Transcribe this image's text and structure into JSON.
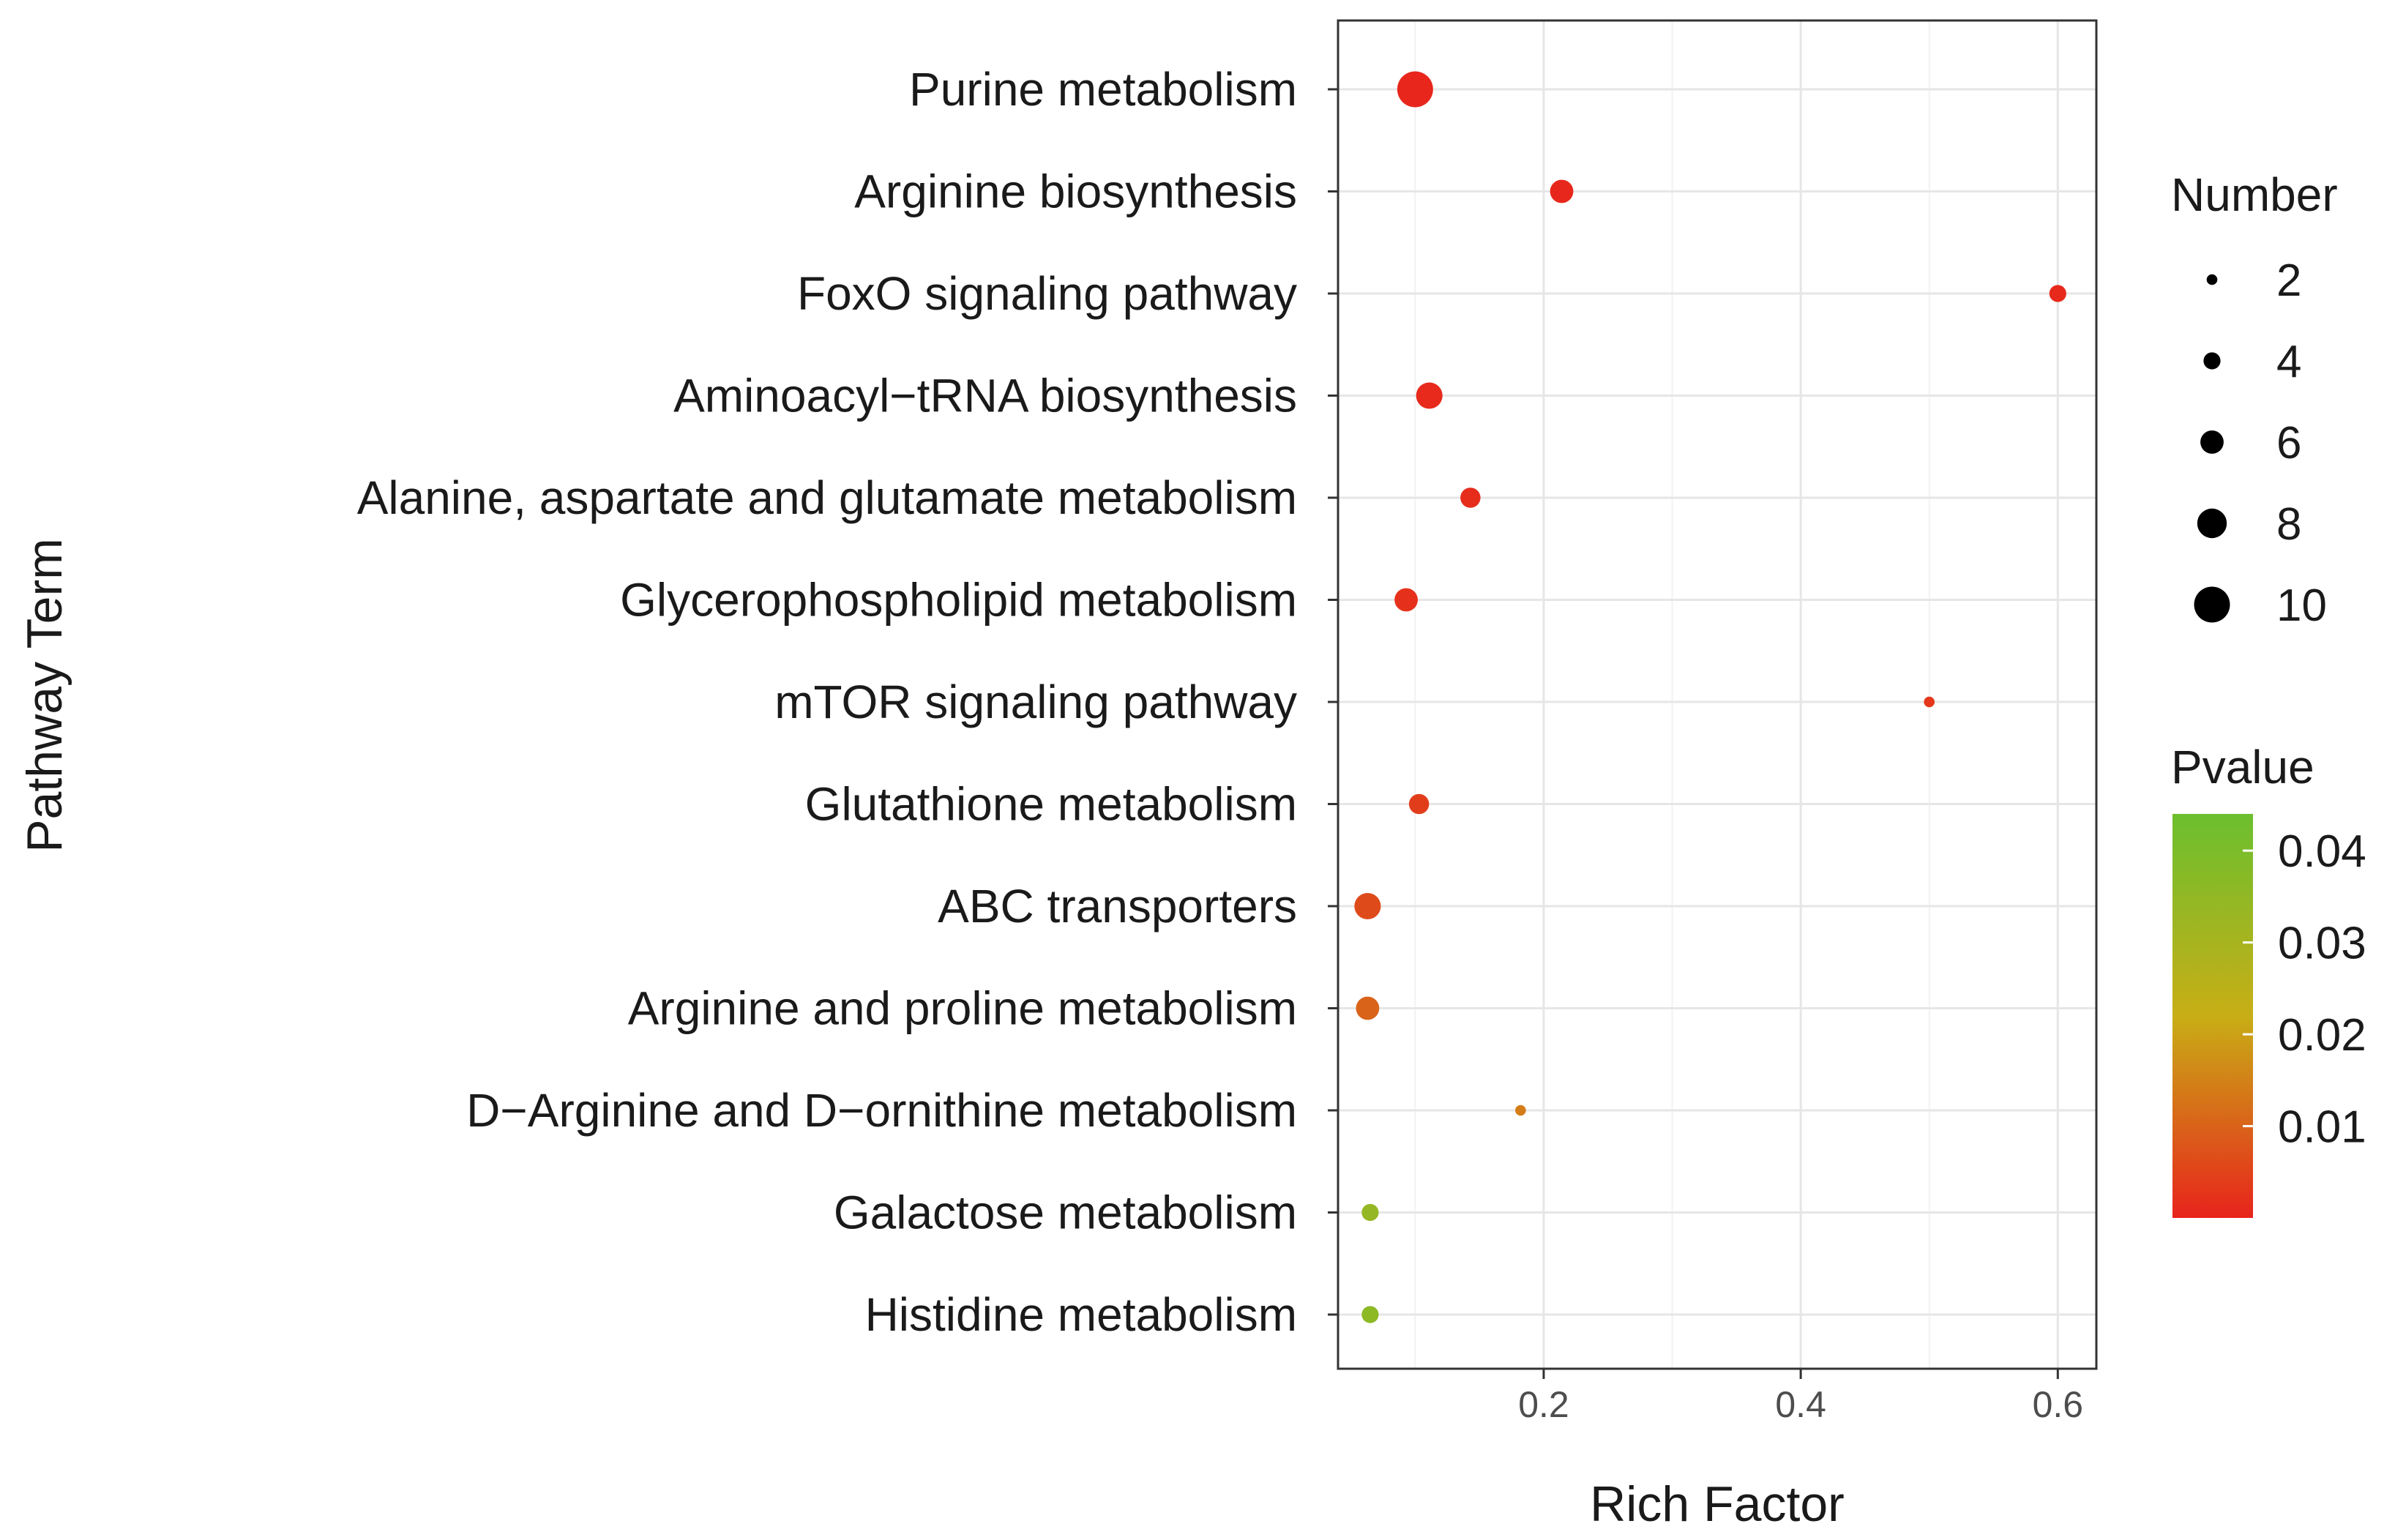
{
  "chart_data": {
    "type": "scatter",
    "xlabel": "Rich Factor",
    "ylabel": "Pathway Term",
    "xlim": [
      0.04,
      0.63
    ],
    "x_ticks": [
      {
        "value": 0.2,
        "label": "0.2"
      },
      {
        "value": 0.4,
        "label": "0.4"
      },
      {
        "value": 0.6,
        "label": "0.6"
      }
    ],
    "grid": true,
    "points": [
      {
        "term": "Purine metabolism",
        "rich_factor": 0.1,
        "number": 10,
        "pvalue": 0.0003
      },
      {
        "term": "Arginine biosynthesis",
        "rich_factor": 0.214,
        "number": 6,
        "pvalue": 0.0005
      },
      {
        "term": "FoxO signaling pathway",
        "rich_factor": 0.6,
        "number": 4,
        "pvalue": 0.0008
      },
      {
        "term": "Aminoacyl−tRNA biosynthesis",
        "rich_factor": 0.111,
        "number": 7,
        "pvalue": 0.001
      },
      {
        "term": "Alanine, aspartate and glutamate metabolism",
        "rich_factor": 0.143,
        "number": 5,
        "pvalue": 0.0015
      },
      {
        "term": "Glycerophospholipid metabolism",
        "rich_factor": 0.093,
        "number": 6,
        "pvalue": 0.002
      },
      {
        "term": "mTOR signaling pathway",
        "rich_factor": 0.5,
        "number": 2,
        "pvalue": 0.003
      },
      {
        "term": "Glutathione metabolism",
        "rich_factor": 0.103,
        "number": 5,
        "pvalue": 0.004
      },
      {
        "term": "ABC transporters",
        "rich_factor": 0.063,
        "number": 7,
        "pvalue": 0.006
      },
      {
        "term": "Arginine and proline metabolism",
        "rich_factor": 0.063,
        "number": 6,
        "pvalue": 0.01
      },
      {
        "term": "D−Arginine and D−ornithine metabolism",
        "rich_factor": 0.182,
        "number": 2,
        "pvalue": 0.014
      },
      {
        "term": "Galactose metabolism",
        "rich_factor": 0.065,
        "number": 4,
        "pvalue": 0.034
      },
      {
        "term": "Histidine metabolism",
        "rich_factor": 0.065,
        "number": 4,
        "pvalue": 0.036
      }
    ],
    "size_legend": {
      "title": "Number",
      "items": [
        {
          "value": 2,
          "label": "2"
        },
        {
          "value": 4,
          "label": "4"
        },
        {
          "value": 6,
          "label": "6"
        },
        {
          "value": 8,
          "label": "8"
        },
        {
          "value": 10,
          "label": "10"
        }
      ]
    },
    "color_legend": {
      "title": "Pvalue",
      "domain": [
        0.0,
        0.044
      ],
      "low_color": "#e8241c",
      "mid_color": "#c8ae16",
      "high_color": "#6bbf2e",
      "ticks": [
        {
          "value": 0.01,
          "label": "0.01"
        },
        {
          "value": 0.02,
          "label": "0.02"
        },
        {
          "value": 0.03,
          "label": "0.03"
        },
        {
          "value": 0.04,
          "label": "0.04"
        }
      ]
    }
  }
}
